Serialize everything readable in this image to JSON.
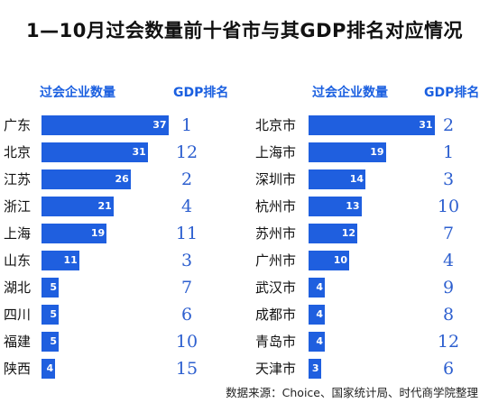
{
  "title": "1—10月过会数量前十省市与其GDP排名对应情况",
  "source": "数据来源：Choice、国家统计局、时代商学院整理",
  "colors": {
    "bar": "#1f5fdf",
    "header": "#1a5fe0",
    "rank": "#2d5fcf"
  },
  "chart_data": [
    {
      "type": "bar",
      "orientation": "horizontal",
      "column_headers": {
        "count": "过会企业数量",
        "rank": "GDP排名"
      },
      "categories": [
        "广东",
        "北京",
        "江苏",
        "浙江",
        "上海",
        "山东",
        "湖北",
        "四川",
        "福建",
        "陕西"
      ],
      "values": [
        37,
        31,
        26,
        21,
        19,
        11,
        5,
        5,
        5,
        4
      ],
      "gdp_rank": [
        1,
        12,
        2,
        4,
        11,
        3,
        7,
        6,
        10,
        15
      ]
    },
    {
      "type": "bar",
      "orientation": "horizontal",
      "column_headers": {
        "count": "过会企业数量",
        "rank": "GDP排名"
      },
      "categories": [
        "北京市",
        "上海市",
        "深圳市",
        "杭州市",
        "苏州市",
        "广州市",
        "武汉市",
        "成都市",
        "青岛市",
        "天津市"
      ],
      "values": [
        31,
        19,
        14,
        13,
        12,
        10,
        4,
        4,
        4,
        3
      ],
      "gdp_rank": [
        2,
        1,
        3,
        10,
        7,
        4,
        9,
        8,
        12,
        6
      ]
    }
  ]
}
